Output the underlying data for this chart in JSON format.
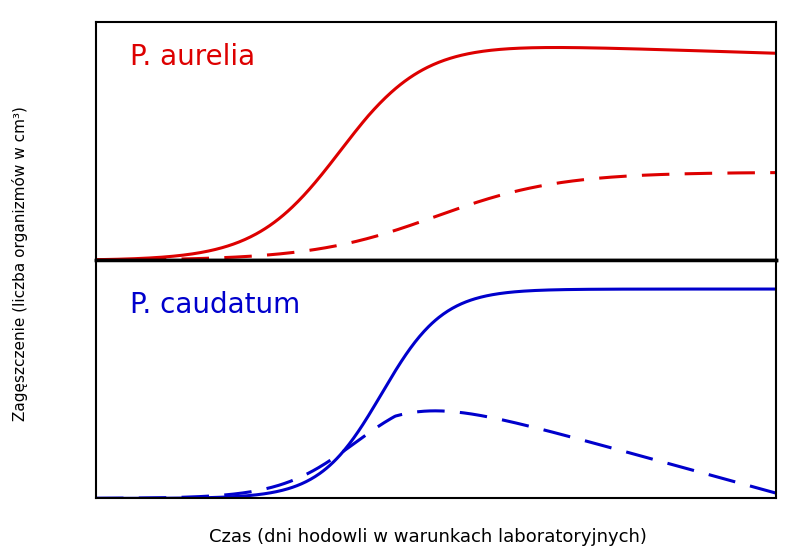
{
  "title_top": "P. aurelia",
  "title_bottom": "P. caudatum",
  "xlabel": "Czas (dni hodowli w warunkach laboratoryjnych)",
  "ylabel": "Zagęszczenie (liczba organizmów w cm³)",
  "color_top": "#dd0000",
  "color_bottom": "#0000cc",
  "background_color": "#ffffff",
  "outer_bg": "#ffffff",
  "label_fontsize": 13,
  "title_fontsize": 20,
  "line_width": 2.2,
  "dash_pattern": [
    9,
    5
  ]
}
